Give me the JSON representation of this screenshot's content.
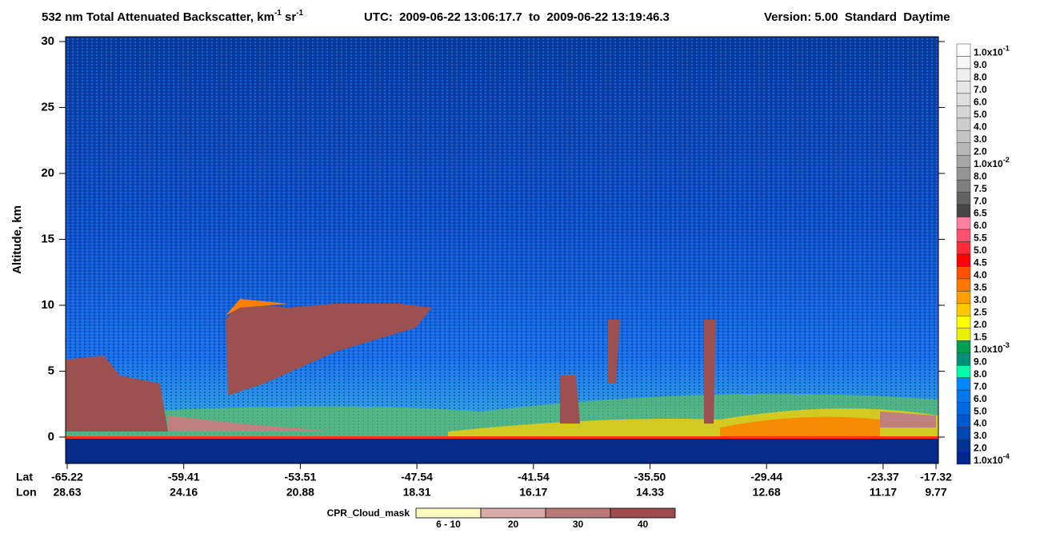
{
  "chart_data": {
    "type": "heatmap",
    "title_parts": [
      "532 nm Total Attenuated Backscatter, km",
      "-1",
      " sr",
      "-1"
    ],
    "utc": "UTC:  2009-06-22 13:06:17.7  to  2009-06-22 13:19:46.3",
    "version": "Version: 5.00  Standard  Daytime",
    "y_label": "Altitude, km",
    "ylim": [
      -2,
      30
    ],
    "yticks": [
      0,
      5,
      10,
      15,
      20,
      25,
      30
    ],
    "x_row_labels": [
      "Lat",
      "Lon"
    ],
    "lat": [
      "-65.22",
      "-59.41",
      "-53.51",
      "-47.54",
      "-41.54",
      "-35.50",
      "-29.44",
      "-23.37",
      "-17.32"
    ],
    "lon": [
      "28.63",
      "24.16",
      "20.88",
      "18.31",
      "16.17",
      "14.33",
      "12.68",
      "11.17",
      "9.77"
    ],
    "colorbar": [
      {
        "label": "1.0x10",
        "exponent": "-1",
        "color": "#ffffff"
      },
      {
        "label": "9.0",
        "color": "#f7f7f7"
      },
      {
        "label": "8.0",
        "color": "#efefef"
      },
      {
        "label": "7.0",
        "color": "#e6e6e6"
      },
      {
        "label": "6.0",
        "color": "#dedede"
      },
      {
        "label": "5.0",
        "color": "#d6d6d6"
      },
      {
        "label": "4.0",
        "color": "#cdcdcd"
      },
      {
        "label": "3.0",
        "color": "#c4c4c4"
      },
      {
        "label": "2.0",
        "color": "#b8b8b8"
      },
      {
        "label": "1.0x10",
        "exponent": "-2",
        "color": "#a6a6a6"
      },
      {
        "label": "8.0",
        "color": "#959595"
      },
      {
        "label": "7.5",
        "color": "#7e7e7e"
      },
      {
        "label": "7.0",
        "color": "#626262"
      },
      {
        "label": "6.5",
        "color": "#464646"
      },
      {
        "label": "6.0",
        "color": "#ff7fa0"
      },
      {
        "label": "5.5",
        "color": "#ff5072"
      },
      {
        "label": "5.0",
        "color": "#ff2a3a"
      },
      {
        "label": "4.5",
        "color": "#ff0000"
      },
      {
        "label": "4.0",
        "color": "#ff5000"
      },
      {
        "label": "3.5",
        "color": "#ff7800"
      },
      {
        "label": "3.0",
        "color": "#ffa000"
      },
      {
        "label": "2.5",
        "color": "#ffc800"
      },
      {
        "label": "2.0",
        "color": "#ffff00"
      },
      {
        "label": "1.5",
        "color": "#e8f000"
      },
      {
        "label": "1.0x10",
        "exponent": "-3",
        "color": "#00a050"
      },
      {
        "label": "9.0",
        "color": "#00907a"
      },
      {
        "label": "8.0",
        "color": "#00ffaa"
      },
      {
        "label": "7.0",
        "color": "#0088ff"
      },
      {
        "label": "6.0",
        "color": "#0078f0"
      },
      {
        "label": "5.0",
        "color": "#0068e0"
      },
      {
        "label": "4.0",
        "color": "#0058d0"
      },
      {
        "label": "3.0",
        "color": "#0046b4"
      },
      {
        "label": "2.0",
        "color": "#003494"
      },
      {
        "label": "1.0x10",
        "exponent": "-4",
        "color": "#00268a"
      }
    ],
    "cloud_mask": {
      "title": "CPR_Cloud_mask",
      "labels": [
        "6 - 10",
        "20",
        "30",
        "40"
      ],
      "colors": [
        "#fffac0",
        "#d8aaaa",
        "#b87878",
        "#9c4c4c"
      ]
    }
  }
}
